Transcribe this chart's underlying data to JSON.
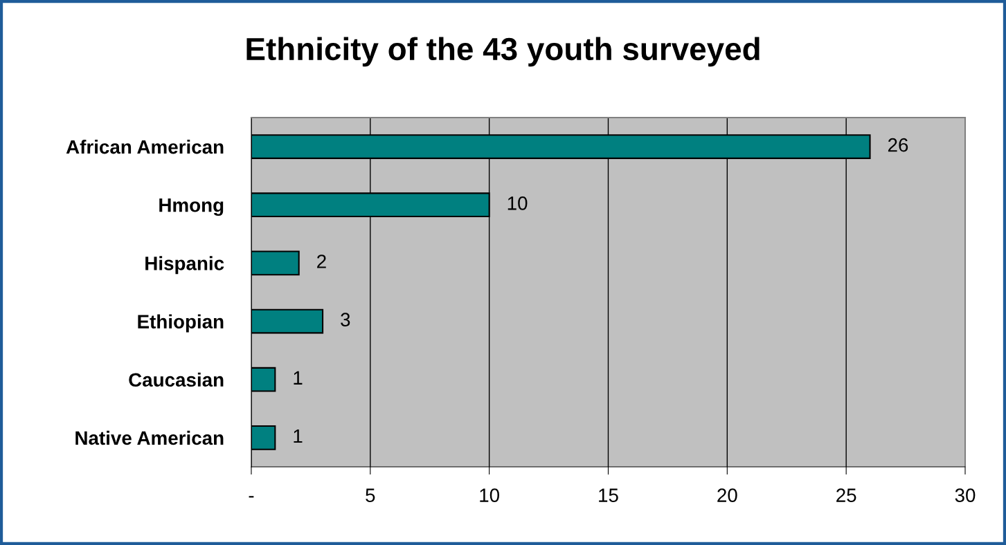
{
  "chart_data": {
    "type": "bar",
    "orientation": "horizontal",
    "title": "Ethnicity of the 43 youth surveyed",
    "categories": [
      "African American",
      "Hmong",
      "Hispanic",
      "Ethiopian",
      "Caucasian",
      "Native American"
    ],
    "values": [
      26,
      10,
      2,
      3,
      1,
      1
    ],
    "color": "#008080",
    "xlim": [
      0,
      30
    ],
    "xticks": [
      {
        "value": 0,
        "label": "-"
      },
      5,
      10,
      15,
      20,
      25,
      30
    ],
    "grid": "x",
    "legend": false,
    "data_labels": true
  }
}
